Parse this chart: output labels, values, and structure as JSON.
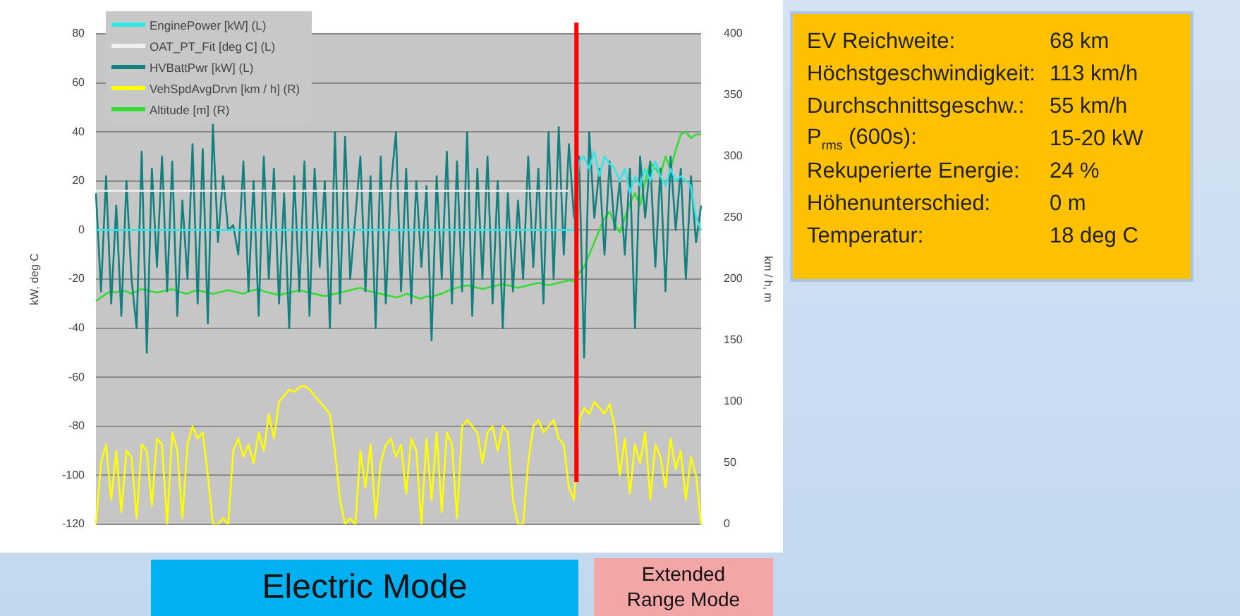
{
  "chart_data": [
    {
      "type": "line",
      "ylabel": "kW, deg C",
      "y2label": "km / h, m",
      "categories": [
        null,
        null,
        null,
        null,
        null,
        null,
        null,
        null,
        null,
        null,
        null,
        null,
        null,
        null,
        null,
        null,
        null,
        null,
        null,
        null,
        null,
        null,
        null,
        null,
        null,
        null,
        null,
        null,
        null,
        null,
        null,
        null,
        null,
        null,
        null,
        null,
        null,
        null,
        null,
        null,
        null,
        null,
        null,
        null,
        null,
        null,
        null,
        null,
        null,
        null,
        null,
        null,
        null,
        null,
        null,
        null,
        null,
        null,
        null,
        null,
        null,
        null,
        null,
        null,
        null,
        null,
        null,
        null,
        null,
        null,
        null,
        null,
        null,
        null,
        null,
        null,
        null,
        null,
        null,
        null,
        null,
        null,
        null,
        null,
        null,
        null,
        null,
        null,
        null,
        null,
        null,
        null,
        null,
        null,
        null,
        null,
        null,
        null,
        null,
        null,
        null,
        null,
        null,
        null,
        null,
        null,
        null,
        null,
        null,
        null,
        null,
        null,
        null,
        null,
        null,
        null,
        null,
        null,
        null,
        null
      ],
      "series": [
        {
          "name": "EnginePower [kW] (L)",
          "color": "#33e6e6",
          "values": [
            0,
            0,
            0,
            0,
            0,
            0,
            0,
            0,
            0,
            0,
            0,
            0,
            0,
            0,
            0,
            0,
            0,
            0,
            0,
            0,
            0,
            0,
            0,
            0,
            0,
            0,
            0,
            0,
            0,
            0,
            0,
            0,
            0,
            0,
            0,
            0,
            0,
            0,
            0,
            0,
            0,
            0,
            0,
            0,
            0,
            0,
            0,
            0,
            0,
            0,
            0,
            0,
            0,
            0,
            0,
            0,
            0,
            0,
            0,
            0,
            0,
            0,
            0,
            0,
            0,
            0,
            0,
            0,
            0,
            0,
            0,
            0,
            0,
            0,
            0,
            0,
            0,
            0,
            0,
            0,
            0,
            0,
            0,
            0,
            0,
            0,
            0,
            0,
            0,
            0,
            0,
            0,
            0,
            0,
            0,
            28,
            30,
            25,
            32,
            22,
            30,
            27,
            25,
            20,
            25,
            15,
            22,
            18,
            25,
            20,
            28,
            22,
            18,
            25,
            20,
            22,
            20,
            18,
            5,
            0
          ]
        },
        {
          "name": "OAT_PT_Fit [deg C] (L)",
          "color": "#f0f0f0",
          "values": [
            16,
            16,
            16,
            16,
            16,
            16,
            16,
            16,
            16,
            16,
            16,
            16,
            16,
            16,
            16,
            16,
            16,
            16,
            16,
            16,
            16,
            16,
            16,
            16,
            16,
            16,
            16,
            16,
            16,
            16,
            16,
            16,
            16,
            16,
            16,
            16,
            16,
            16,
            16,
            16,
            16,
            16,
            16,
            16,
            16,
            16,
            16,
            16,
            16,
            16,
            16,
            16,
            16,
            16,
            16,
            16,
            16,
            16,
            16,
            16,
            16,
            16,
            16,
            16,
            16,
            16,
            16,
            16,
            16,
            16,
            16,
            16,
            16,
            16,
            16,
            16,
            16,
            16,
            16,
            16,
            16,
            16,
            16,
            16,
            16,
            16,
            16,
            16,
            16,
            16,
            16,
            16,
            16,
            16,
            null,
            null,
            null,
            null,
            null,
            null,
            null,
            null,
            null,
            null,
            null,
            null,
            null,
            null,
            null,
            null,
            null,
            null,
            null,
            null,
            null,
            null,
            null,
            null,
            null,
            null
          ]
        },
        {
          "name": "HVBattPwr [kW] (L)",
          "color": "#138080",
          "values": [
            15,
            -25,
            22,
            -30,
            10,
            -35,
            20,
            -20,
            -40,
            32,
            -50,
            25,
            -15,
            30,
            -25,
            28,
            -35,
            12,
            -20,
            35,
            -30,
            33,
            -38,
            43,
            -5,
            22,
            0,
            2,
            -10,
            28,
            -25,
            20,
            -35,
            30,
            -20,
            25,
            -30,
            15,
            -40,
            22,
            -25,
            28,
            -35,
            25,
            -15,
            20,
            -40,
            40,
            -30,
            38,
            -20,
            5,
            30,
            -25,
            22,
            -40,
            30,
            -30,
            18,
            40,
            -25,
            25,
            -30,
            20,
            -15,
            18,
            -45,
            22,
            -20,
            32,
            -30,
            28,
            -25,
            40,
            -35,
            25,
            -20,
            30,
            -30,
            20,
            -40,
            15,
            -25,
            12,
            -20,
            30,
            -15,
            25,
            -30,
            40,
            -20,
            42,
            -10,
            35,
            5,
            30,
            -52,
            40,
            5,
            25,
            -10,
            28,
            0,
            20,
            -10,
            25,
            -40,
            30,
            5,
            28,
            -15,
            25,
            -25,
            30,
            0,
            25,
            -20,
            22,
            -5,
            10
          ]
        },
        {
          "name": "VehSpdAvgDrvn [km / h] (R)",
          "color": "#ffff00",
          "axis": "y2",
          "values": [
            0,
            50,
            65,
            20,
            60,
            10,
            60,
            55,
            5,
            65,
            60,
            15,
            70,
            65,
            0,
            75,
            60,
            5,
            65,
            80,
            70,
            75,
            40,
            0,
            0,
            5,
            0,
            60,
            70,
            55,
            65,
            50,
            75,
            60,
            90,
            70,
            100,
            105,
            110,
            108,
            112,
            113,
            110,
            105,
            100,
            95,
            90,
            60,
            20,
            0,
            5,
            0,
            60,
            30,
            65,
            5,
            50,
            65,
            70,
            55,
            65,
            25,
            70,
            60,
            0,
            70,
            20,
            75,
            10,
            75,
            65,
            5,
            80,
            85,
            80,
            75,
            50,
            75,
            80,
            60,
            80,
            75,
            20,
            0,
            0,
            50,
            80,
            85,
            75,
            80,
            85,
            70,
            65,
            30,
            20,
            85,
            95,
            90,
            100,
            95,
            90,
            98,
            80,
            40,
            70,
            25,
            65,
            50,
            75,
            20,
            65,
            55,
            30,
            70,
            45,
            60,
            20,
            55,
            40,
            0
          ]
        },
        {
          "name": "Altitude [m] (R)",
          "color": "#33dd33",
          "axis": "y2",
          "values": [
            182,
            185,
            188,
            190,
            189,
            191,
            190,
            188,
            190,
            192,
            191,
            190,
            189,
            190,
            191,
            192,
            190,
            189,
            188,
            190,
            191,
            190,
            189,
            188,
            189,
            190,
            191,
            190,
            189,
            188,
            190,
            191,
            192,
            190,
            189,
            188,
            187,
            188,
            189,
            190,
            191,
            190,
            189,
            188,
            187,
            186,
            187,
            188,
            189,
            190,
            191,
            192,
            193,
            191,
            190,
            189,
            188,
            187,
            186,
            185,
            186,
            188,
            187,
            185,
            184,
            186,
            185,
            187,
            188,
            190,
            192,
            193,
            194,
            195,
            194,
            193,
            192,
            193,
            194,
            195,
            196,
            195,
            194,
            193,
            194,
            195,
            196,
            197,
            196,
            195,
            196,
            197,
            198,
            199,
            198,
            205,
            210,
            220,
            230,
            240,
            250,
            255,
            245,
            238,
            250,
            262,
            270,
            260,
            280,
            295,
            290,
            285,
            300,
            290,
            305,
            318,
            320,
            315,
            318,
            318
          ]
        }
      ],
      "ylim": [
        -120,
        80
      ],
      "yticks": [
        -120,
        -100,
        -80,
        -60,
        -40,
        -20,
        0,
        20,
        40,
        60,
        80
      ],
      "y2lim": [
        0,
        400
      ],
      "y2ticks": [
        0,
        50,
        100,
        150,
        200,
        250,
        300,
        350,
        400
      ],
      "grid": "y",
      "legend": "top left",
      "tick_labels": "y",
      "marker": "none",
      "line_style": "solid",
      "annotations": [
        "Electric Mode",
        "Extended Range Mode"
      ]
    },
    {
      "type": "other",
      "annotations": [
        "EV Reichweite:",
        "68 km",
        "Höchstgeschwindigkeit:",
        "113 km/h",
        "Durchschnittsgeschw.:",
        "55 km/h",
        "P$_{rms}$ (600s):",
        "15-20 kW",
        "Rekuperierte Energie:",
        "24 %",
        "Höhenunterschied:",
        "0 m",
        "Temperatur:",
        "18 deg C"
      ]
    }
  ]
}
